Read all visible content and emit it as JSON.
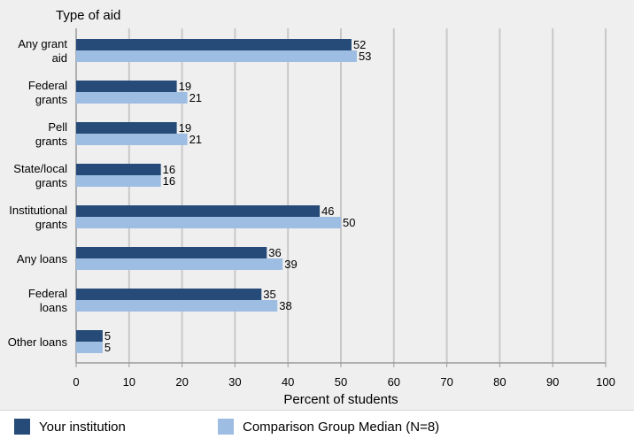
{
  "chart_data": {
    "type": "bar",
    "orientation": "horizontal",
    "title": "Type of aid",
    "xlabel": "Percent of students",
    "ylabel": "Type of aid",
    "xlim": [
      0,
      100
    ],
    "xticks": [
      0,
      10,
      20,
      30,
      40,
      50,
      60,
      70,
      80,
      90,
      100
    ],
    "grid": true,
    "categories": [
      [
        "Any grant",
        "aid"
      ],
      [
        "Federal",
        "grants"
      ],
      [
        "Pell",
        "grants"
      ],
      [
        "State/local",
        "grants"
      ],
      [
        "Institutional",
        "grants"
      ],
      [
        "Any loans"
      ],
      [
        "Federal",
        "loans"
      ],
      [
        "Other loans"
      ]
    ],
    "series": [
      {
        "name": "Your institution",
        "color": "#264b78",
        "values": [
          52,
          19,
          19,
          16,
          46,
          36,
          35,
          5
        ]
      },
      {
        "name": "Comparison Group Median (N=8)",
        "color": "#9ebde2",
        "values": [
          53,
          21,
          21,
          16,
          50,
          39,
          38,
          5
        ]
      }
    ],
    "legend_position": "bottom"
  }
}
